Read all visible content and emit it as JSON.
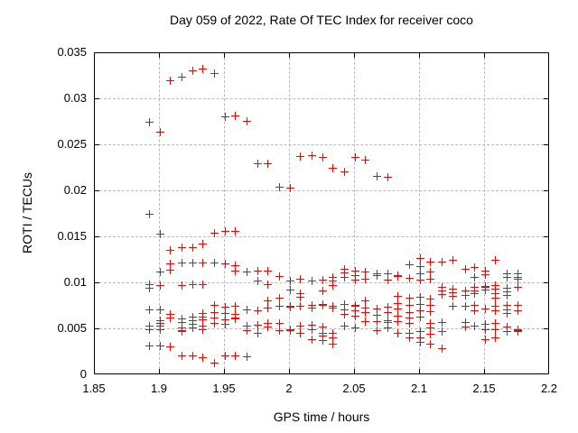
{
  "colors": {
    "marker": "#ff0000",
    "grid": "#b9b9b9",
    "frame": "#000000",
    "background": "#ffffff",
    "text": "#000000"
  },
  "chart_data": {
    "type": "scatter",
    "title": "Day 059 of 2022, Rate Of TEC Index for receiver coco",
    "xlabel": "GPS time / hours",
    "ylabel": "ROTI / TECUs",
    "xlim": [
      1.85,
      2.2
    ],
    "ylim": [
      0,
      0.035
    ],
    "x_ticks": [
      1.85,
      1.9,
      1.95,
      2.0,
      2.05,
      2.1,
      2.15,
      2.2
    ],
    "x_tick_labels": [
      "1.85",
      "1.9",
      "1.95",
      "2",
      "2.05",
      "2.1",
      "2.15",
      "2.2"
    ],
    "y_ticks": [
      0,
      0.005,
      0.01,
      0.015,
      0.02,
      0.025,
      0.03,
      0.035
    ],
    "y_tick_labels": [
      "0",
      "0.005",
      "0.01",
      "0.015",
      "0.02",
      "0.025",
      "0.03",
      "0.035"
    ],
    "grid": true,
    "legend": null,
    "marker_shape": "plus",
    "series": [
      {
        "name": "ROTI",
        "points": [
          [
            1.892,
            0.0275
          ],
          [
            1.892,
            0.0175
          ],
          [
            1.892,
            0.0099
          ],
          [
            1.892,
            0.0095
          ],
          [
            1.892,
            0.0071
          ],
          [
            1.892,
            0.0053
          ],
          [
            1.892,
            0.005
          ],
          [
            1.892,
            0.0032
          ],
          [
            1.9,
            0.0264
          ],
          [
            1.9,
            0.0153
          ],
          [
            1.9,
            0.0112
          ],
          [
            1.9,
            0.0098
          ],
          [
            1.9,
            0.0071
          ],
          [
            1.9,
            0.0059
          ],
          [
            1.9,
            0.0056
          ],
          [
            1.9,
            0.0053
          ],
          [
            1.9,
            0.005
          ],
          [
            1.9,
            0.0032
          ],
          [
            1.908,
            0.032
          ],
          [
            1.908,
            0.0136
          ],
          [
            1.908,
            0.0121
          ],
          [
            1.908,
            0.0114
          ],
          [
            1.908,
            0.0066
          ],
          [
            1.908,
            0.0062
          ],
          [
            1.908,
            0.0031
          ],
          [
            1.917,
            0.0324
          ],
          [
            1.917,
            0.0139
          ],
          [
            1.917,
            0.0122
          ],
          [
            1.917,
            0.0098
          ],
          [
            1.917,
            0.0061
          ],
          [
            1.917,
            0.0057
          ],
          [
            1.917,
            0.0051
          ],
          [
            1.917,
            0.0049
          ],
          [
            1.917,
            0.0048
          ],
          [
            1.917,
            0.0021
          ],
          [
            1.925,
            0.0331
          ],
          [
            1.925,
            0.0139
          ],
          [
            1.925,
            0.0122
          ],
          [
            1.925,
            0.0099
          ],
          [
            1.925,
            0.0063
          ],
          [
            1.925,
            0.0059
          ],
          [
            1.925,
            0.0055
          ],
          [
            1.925,
            0.0051
          ],
          [
            1.925,
            0.0021
          ],
          [
            1.933,
            0.0333
          ],
          [
            1.933,
            0.0143
          ],
          [
            1.933,
            0.0122
          ],
          [
            1.933,
            0.0099
          ],
          [
            1.933,
            0.0067
          ],
          [
            1.933,
            0.0063
          ],
          [
            1.933,
            0.006
          ],
          [
            1.933,
            0.0053
          ],
          [
            1.933,
            0.005
          ],
          [
            1.933,
            0.0019
          ],
          [
            1.942,
            0.0328
          ],
          [
            1.942,
            0.0154
          ],
          [
            1.942,
            0.0122
          ],
          [
            1.942,
            0.0076
          ],
          [
            1.942,
            0.0068
          ],
          [
            1.942,
            0.0062
          ],
          [
            1.942,
            0.0056
          ],
          [
            1.942,
            0.0013
          ],
          [
            1.95,
            0.0281
          ],
          [
            1.95,
            0.0156
          ],
          [
            1.95,
            0.0121
          ],
          [
            1.95,
            0.0074
          ],
          [
            1.95,
            0.0067
          ],
          [
            1.95,
            0.006
          ],
          [
            1.95,
            0.0055
          ],
          [
            1.95,
            0.0021
          ],
          [
            1.958,
            0.0282
          ],
          [
            1.958,
            0.0156
          ],
          [
            1.958,
            0.0119
          ],
          [
            1.958,
            0.0113
          ],
          [
            1.958,
            0.0075
          ],
          [
            1.958,
            0.0066
          ],
          [
            1.958,
            0.0062
          ],
          [
            1.958,
            0.0061
          ],
          [
            1.958,
            0.0021
          ],
          [
            1.967,
            0.0276
          ],
          [
            1.967,
            0.0112
          ],
          [
            1.967,
            0.0071
          ],
          [
            1.967,
            0.0053
          ],
          [
            1.967,
            0.0049
          ],
          [
            1.967,
            0.002
          ],
          [
            1.975,
            0.023
          ],
          [
            1.975,
            0.0113
          ],
          [
            1.975,
            0.0102
          ],
          [
            1.975,
            0.007
          ],
          [
            1.975,
            0.0054
          ],
          [
            1.975,
            0.0046
          ],
          [
            1.983,
            0.023
          ],
          [
            1.983,
            0.0113
          ],
          [
            1.983,
            0.0099
          ],
          [
            1.983,
            0.0081
          ],
          [
            1.983,
            0.0073
          ],
          [
            1.983,
            0.0056
          ],
          [
            1.983,
            0.0052
          ],
          [
            1.992,
            0.0204
          ],
          [
            1.992,
            0.0107
          ],
          [
            1.992,
            0.0084
          ],
          [
            1.992,
            0.0075
          ],
          [
            1.992,
            0.0056
          ],
          [
            1.992,
            0.0049
          ],
          [
            2.0,
            0.0203
          ],
          [
            2.0,
            0.0102
          ],
          [
            2.0,
            0.0093
          ],
          [
            2.0,
            0.0075
          ],
          [
            2.0,
            0.0074
          ],
          [
            2.0,
            0.005
          ],
          [
            2.0,
            0.0049
          ],
          [
            2.008,
            0.0238
          ],
          [
            2.008,
            0.0104
          ],
          [
            2.008,
            0.0089
          ],
          [
            2.008,
            0.0085
          ],
          [
            2.008,
            0.0075
          ],
          [
            2.008,
            0.0053
          ],
          [
            2.008,
            0.0046
          ],
          [
            2.017,
            0.0239
          ],
          [
            2.017,
            0.0102
          ],
          [
            2.017,
            0.0076
          ],
          [
            2.017,
            0.0073
          ],
          [
            2.017,
            0.0054
          ],
          [
            2.017,
            0.005
          ],
          [
            2.017,
            0.0039
          ],
          [
            2.025,
            0.0237
          ],
          [
            2.025,
            0.0103
          ],
          [
            2.025,
            0.0092
          ],
          [
            2.025,
            0.0077
          ],
          [
            2.025,
            0.0076
          ],
          [
            2.025,
            0.0052
          ],
          [
            2.025,
            0.0046
          ],
          [
            2.025,
            0.0043
          ],
          [
            2.025,
            0.0038
          ],
          [
            2.033,
            0.0225
          ],
          [
            2.033,
            0.0106
          ],
          [
            2.033,
            0.0102
          ],
          [
            2.033,
            0.0098
          ],
          [
            2.033,
            0.0075
          ],
          [
            2.033,
            0.0073
          ],
          [
            2.033,
            0.0046
          ],
          [
            2.033,
            0.0041
          ],
          [
            2.033,
            0.0034
          ],
          [
            2.042,
            0.0221
          ],
          [
            2.042,
            0.0115
          ],
          [
            2.042,
            0.0111
          ],
          [
            2.042,
            0.0106
          ],
          [
            2.042,
            0.0077
          ],
          [
            2.042,
            0.0071
          ],
          [
            2.042,
            0.0066
          ],
          [
            2.042,
            0.0053
          ],
          [
            2.05,
            0.0237
          ],
          [
            2.05,
            0.0113
          ],
          [
            2.05,
            0.0108
          ],
          [
            2.05,
            0.0103
          ],
          [
            2.05,
            0.0076
          ],
          [
            2.05,
            0.0075
          ],
          [
            2.05,
            0.007
          ],
          [
            2.05,
            0.0064
          ],
          [
            2.05,
            0.0051
          ],
          [
            2.058,
            0.0234
          ],
          [
            2.058,
            0.0112
          ],
          [
            2.058,
            0.0104
          ],
          [
            2.058,
            0.0081
          ],
          [
            2.058,
            0.0073
          ],
          [
            2.058,
            0.0068
          ],
          [
            2.058,
            0.0058
          ],
          [
            2.067,
            0.0216
          ],
          [
            2.067,
            0.011
          ],
          [
            2.067,
            0.0108
          ],
          [
            2.067,
            0.0072
          ],
          [
            2.067,
            0.0065
          ],
          [
            2.067,
            0.0058
          ],
          [
            2.067,
            0.0049
          ],
          [
            2.075,
            0.0215
          ],
          [
            2.075,
            0.011
          ],
          [
            2.075,
            0.0103
          ],
          [
            2.075,
            0.0074
          ],
          [
            2.075,
            0.0068
          ],
          [
            2.075,
            0.0059
          ],
          [
            2.075,
            0.0057
          ],
          [
            2.075,
            0.0051
          ],
          [
            2.083,
            0.0108
          ],
          [
            2.083,
            0.0107
          ],
          [
            2.083,
            0.0086
          ],
          [
            2.083,
            0.0078
          ],
          [
            2.083,
            0.0072
          ],
          [
            2.083,
            0.0064
          ],
          [
            2.083,
            0.0058
          ],
          [
            2.083,
            0.0046
          ],
          [
            2.092,
            0.012
          ],
          [
            2.092,
            0.0105
          ],
          [
            2.092,
            0.0084
          ],
          [
            2.092,
            0.0076
          ],
          [
            2.092,
            0.0068
          ],
          [
            2.092,
            0.0062
          ],
          [
            2.092,
            0.0056
          ],
          [
            2.092,
            0.0046
          ],
          [
            2.092,
            0.0041
          ],
          [
            2.1,
            0.0127
          ],
          [
            2.1,
            0.0118
          ],
          [
            2.1,
            0.011
          ],
          [
            2.1,
            0.0103
          ],
          [
            2.1,
            0.0085
          ],
          [
            2.1,
            0.0077
          ],
          [
            2.1,
            0.007
          ],
          [
            2.1,
            0.0063
          ],
          [
            2.1,
            0.0048
          ],
          [
            2.1,
            0.0041
          ],
          [
            2.1,
            0.0036
          ],
          [
            2.108,
            0.0123
          ],
          [
            2.108,
            0.0112
          ],
          [
            2.108,
            0.0104
          ],
          [
            2.108,
            0.0083
          ],
          [
            2.108,
            0.0076
          ],
          [
            2.108,
            0.0069
          ],
          [
            2.108,
            0.0056
          ],
          [
            2.108,
            0.0051
          ],
          [
            2.108,
            0.0045
          ],
          [
            2.108,
            0.0034
          ],
          [
            2.117,
            0.0123
          ],
          [
            2.117,
            0.0096
          ],
          [
            2.117,
            0.0092
          ],
          [
            2.117,
            0.0088
          ],
          [
            2.117,
            0.0057
          ],
          [
            2.117,
            0.0048
          ],
          [
            2.117,
            0.0029
          ],
          [
            2.125,
            0.0125
          ],
          [
            2.125,
            0.0094
          ],
          [
            2.125,
            0.009
          ],
          [
            2.125,
            0.0086
          ],
          [
            2.125,
            0.0075
          ],
          [
            2.135,
            0.0115
          ],
          [
            2.135,
            0.0092
          ],
          [
            2.135,
            0.0087
          ],
          [
            2.135,
            0.0075
          ],
          [
            2.135,
            0.0057
          ],
          [
            2.135,
            0.0052
          ],
          [
            2.142,
            0.0117
          ],
          [
            2.142,
            0.0106
          ],
          [
            2.142,
            0.0096
          ],
          [
            2.142,
            0.0092
          ],
          [
            2.142,
            0.0089
          ],
          [
            2.142,
            0.0076
          ],
          [
            2.142,
            0.007
          ],
          [
            2.142,
            0.0053
          ],
          [
            2.15,
            0.0113
          ],
          [
            2.15,
            0.0109
          ],
          [
            2.15,
            0.0097
          ],
          [
            2.15,
            0.0096
          ],
          [
            2.15,
            0.0093
          ],
          [
            2.15,
            0.0072
          ],
          [
            2.15,
            0.0055
          ],
          [
            2.15,
            0.005
          ],
          [
            2.15,
            0.0039
          ],
          [
            2.158,
            0.0125
          ],
          [
            2.158,
            0.0098
          ],
          [
            2.158,
            0.0094
          ],
          [
            2.158,
            0.0089
          ],
          [
            2.158,
            0.0084
          ],
          [
            2.158,
            0.0075
          ],
          [
            2.158,
            0.007
          ],
          [
            2.158,
            0.0056
          ],
          [
            2.158,
            0.005
          ],
          [
            2.158,
            0.0041
          ],
          [
            2.167,
            0.011
          ],
          [
            2.167,
            0.0106
          ],
          [
            2.167,
            0.0095
          ],
          [
            2.167,
            0.0091
          ],
          [
            2.167,
            0.0087
          ],
          [
            2.167,
            0.0076
          ],
          [
            2.167,
            0.0071
          ],
          [
            2.167,
            0.0067
          ],
          [
            2.167,
            0.0052
          ],
          [
            2.167,
            0.0048
          ],
          [
            2.175,
            0.011
          ],
          [
            2.175,
            0.0106
          ],
          [
            2.175,
            0.0104
          ],
          [
            2.175,
            0.0096
          ],
          [
            2.175,
            0.0076
          ],
          [
            2.175,
            0.007
          ],
          [
            2.175,
            0.005
          ],
          [
            2.175,
            0.0049
          ],
          [
            2.175,
            0.0048
          ]
        ]
      }
    ]
  }
}
